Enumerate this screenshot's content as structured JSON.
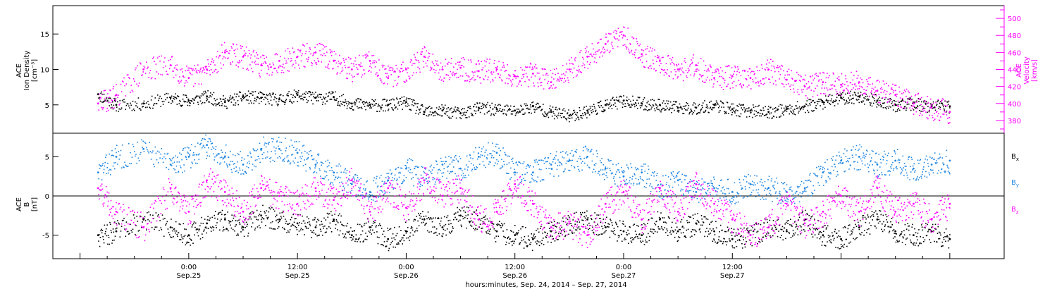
{
  "chart_data": [
    {
      "type": "scatter",
      "panel": "top",
      "ylabel_left": [
        "ACE",
        "Ion Density",
        "[cm⁻³]"
      ],
      "ylabel_right": [
        "ACE",
        "Velocity",
        "[km/s]"
      ],
      "left_ticks": [
        5,
        10,
        15
      ],
      "left_ylim": [
        1,
        19
      ],
      "right_ticks": [
        380,
        400,
        420,
        440,
        460,
        480,
        500
      ],
      "right_ylim": [
        365,
        515
      ],
      "right_axis_color": "#ff00ff",
      "series": [
        {
          "name": "",
          "axis": "left",
          "color": "#000000",
          "x": [
            -10,
            -8,
            -5,
            -2,
            0,
            2,
            4,
            6,
            8,
            10,
            12,
            14,
            16,
            18,
            20,
            22,
            24,
            26,
            28,
            30,
            32,
            34,
            36,
            38,
            40,
            42,
            44,
            46,
            48,
            50,
            52,
            54,
            56,
            58,
            60,
            62,
            64,
            66,
            68,
            70,
            72,
            74,
            76,
            78,
            80,
            82,
            84
          ],
          "y": [
            6.5,
            5.0,
            5.2,
            6.0,
            5.6,
            6.2,
            5.4,
            6.2,
            6.0,
            5.8,
            6.4,
            6.0,
            6.1,
            5.2,
            5.0,
            5.0,
            5.4,
            4.0,
            4.2,
            3.8,
            4.6,
            4.4,
            4.2,
            4.8,
            4.0,
            3.5,
            4.2,
            5.0,
            5.6,
            5.2,
            5.0,
            4.6,
            4.6,
            5.0,
            4.4,
            4.2,
            4.0,
            4.4,
            4.8,
            5.4,
            6.0,
            6.2,
            5.6,
            5.0,
            5.2,
            4.8,
            4.8
          ]
        },
        {
          "name": "",
          "axis": "right",
          "color": "#ff00ff",
          "x": [
            -10,
            -8,
            -5,
            -2,
            0,
            2,
            4,
            6,
            8,
            10,
            12,
            14,
            16,
            18,
            20,
            22,
            24,
            26,
            28,
            30,
            32,
            34,
            36,
            38,
            40,
            42,
            44,
            46,
            48,
            50,
            52,
            54,
            56,
            58,
            60,
            62,
            64,
            66,
            68,
            70,
            72,
            74,
            76,
            78,
            80,
            82,
            84
          ],
          "y": [
            400,
            410,
            440,
            445,
            430,
            440,
            460,
            455,
            445,
            450,
            455,
            460,
            450,
            440,
            450,
            430,
            440,
            455,
            440,
            442,
            438,
            440,
            432,
            435,
            425,
            440,
            455,
            470,
            480,
            458,
            450,
            440,
            445,
            430,
            432,
            430,
            440,
            428,
            420,
            425,
            422,
            425,
            415,
            410,
            400,
            395,
            390
          ]
        }
      ]
    },
    {
      "type": "scatter",
      "panel": "bottom",
      "ylabel": [
        "ACE",
        "B",
        "[nT]"
      ],
      "ticks": [
        -5,
        0,
        5
      ],
      "ylim": [
        -8,
        8
      ],
      "zero_line": true,
      "legend": [
        {
          "label": "B",
          "sub": "x",
          "color": "#000000"
        },
        {
          "label": "B",
          "sub": "y",
          "color": "#1f86e0"
        },
        {
          "label": "B",
          "sub": "z",
          "color": "#ff00ff"
        }
      ],
      "series": [
        {
          "name": "Bx",
          "color": "#000000",
          "x": [
            -10,
            -8,
            -5,
            -2,
            0,
            2,
            4,
            6,
            8,
            10,
            12,
            14,
            16,
            18,
            20,
            22,
            24,
            26,
            28,
            30,
            32,
            34,
            36,
            38,
            40,
            42,
            44,
            46,
            48,
            50,
            52,
            54,
            56,
            58,
            60,
            62,
            64,
            66,
            68,
            70,
            72,
            74,
            76,
            78,
            80,
            82,
            84
          ],
          "y": [
            -5.0,
            -4.5,
            -3.0,
            -4.0,
            -5.0,
            -3.5,
            -3.0,
            -4.0,
            -2.5,
            -3.0,
            -3.5,
            -4.0,
            -3.0,
            -5.0,
            -4.0,
            -5.5,
            -4.5,
            -3.0,
            -4.0,
            -2.5,
            -3.0,
            -4.5,
            -5.0,
            -5.5,
            -4.5,
            -3.5,
            -3.0,
            -4.0,
            -4.5,
            -5.0,
            -3.0,
            -4.5,
            -3.5,
            -4.5,
            -5.5,
            -5.0,
            -4.0,
            -4.5,
            -3.0,
            -5.0,
            -5.5,
            -4.0,
            -3.0,
            -4.5,
            -5.0,
            -4.5,
            -5.5
          ]
        },
        {
          "name": "By",
          "color": "#1f86e0",
          "x": [
            -10,
            -8,
            -5,
            -2,
            0,
            2,
            4,
            6,
            8,
            10,
            12,
            14,
            16,
            18,
            20,
            22,
            24,
            26,
            28,
            30,
            32,
            34,
            36,
            38,
            40,
            42,
            44,
            46,
            48,
            50,
            52,
            54,
            56,
            58,
            60,
            62,
            64,
            66,
            68,
            70,
            72,
            74,
            76,
            78,
            80,
            82,
            84
          ],
          "y": [
            3.0,
            5.0,
            6.0,
            4.0,
            5.0,
            6.5,
            5.0,
            4.0,
            6.0,
            6.0,
            5.5,
            4.0,
            3.0,
            1.5,
            0.5,
            2.0,
            3.5,
            2.0,
            4.0,
            3.5,
            5.0,
            5.5,
            3.0,
            3.0,
            4.0,
            4.5,
            5.0,
            3.5,
            2.5,
            3.0,
            1.0,
            2.0,
            0.5,
            1.0,
            0.5,
            1.5,
            1.0,
            0.5,
            1.0,
            3.0,
            4.5,
            5.0,
            4.0,
            4.5,
            3.5,
            4.0,
            4.5
          ]
        },
        {
          "name": "Bz",
          "color": "#ff00ff",
          "x": [
            -10,
            -8,
            -5,
            -2,
            0,
            2,
            4,
            6,
            8,
            10,
            12,
            14,
            16,
            18,
            20,
            22,
            24,
            26,
            28,
            30,
            32,
            34,
            36,
            38,
            40,
            42,
            44,
            46,
            48,
            50,
            52,
            54,
            56,
            58,
            60,
            62,
            64,
            66,
            68,
            70,
            72,
            74,
            76,
            78,
            80,
            82,
            84
          ],
          "y": [
            1.0,
            -2.0,
            -4.0,
            1.0,
            -2.0,
            2.0,
            0.5,
            -2.0,
            1.0,
            0.0,
            -1.0,
            1.0,
            -0.5,
            2.0,
            -2.0,
            1.0,
            -1.5,
            2.0,
            0.0,
            1.0,
            -3.0,
            -2.0,
            1.5,
            -1.0,
            -4.0,
            -3.5,
            -5.0,
            -1.0,
            0.5,
            -3.0,
            1.0,
            -2.0,
            1.5,
            -1.0,
            -3.0,
            -5.0,
            -4.0,
            -1.0,
            -3.5,
            -2.0,
            0.0,
            -2.0,
            1.0,
            -2.0,
            -1.0,
            -3.0,
            -1.0
          ]
        }
      ]
    }
  ],
  "x_axis": {
    "xlim": [
      -15,
      90
    ],
    "ticks": [
      {
        "x": 0,
        "l1": "0:00",
        "l2": "Sep.25"
      },
      {
        "x": 12,
        "l1": "12:00",
        "l2": "Sep.25"
      },
      {
        "x": 24,
        "l1": "0:00",
        "l2": "Sep.26"
      },
      {
        "x": 36,
        "l1": "12:00",
        "l2": "Sep.26"
      },
      {
        "x": 48,
        "l1": "0:00",
        "l2": "Sep.27"
      },
      {
        "x": 60,
        "l1": "12:00",
        "l2": "Sep.27"
      }
    ],
    "xlabel": "hours:minutes, Sep. 24, 2014 – Sep. 27, 2014"
  }
}
